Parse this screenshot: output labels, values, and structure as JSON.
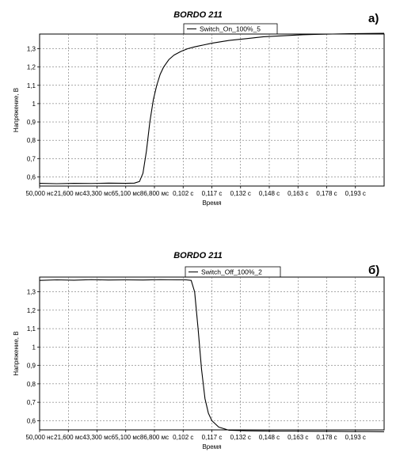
{
  "chart_data": [
    {
      "type": "line",
      "panel_label": "а)",
      "title": "BORDO 211",
      "legend": "Switch_On_100%_5",
      "xlabel": "Время",
      "ylabel": "Напряжение, В",
      "x_tick_labels": [
        "50,000 нс",
        "21,600 мс",
        "43,300 мс",
        "65,100 мс",
        "86,800 мс",
        "0,102 с",
        "0,117 с",
        "0,132 с",
        "0,148 с",
        "0,163 с",
        "0,178 с",
        "0,193 с"
      ],
      "y_tick_labels": [
        "0,6",
        "0,7",
        "0,8",
        "0,9",
        "1",
        "1,1",
        "1,2",
        "1,3"
      ],
      "y_ticks": [
        0.6,
        0.7,
        0.8,
        0.9,
        1.0,
        1.1,
        1.2,
        1.3
      ],
      "xlim": [
        0,
        0.2
      ],
      "ylim": [
        0.55,
        1.38
      ],
      "grid": true,
      "legend_position": "top-center",
      "series": [
        {
          "name": "Switch_On_100%_5",
          "color": "#000000",
          "x": [
            0,
            0.01,
            0.02,
            0.03,
            0.04,
            0.05,
            0.055,
            0.058,
            0.06,
            0.062,
            0.064,
            0.066,
            0.068,
            0.07,
            0.072,
            0.075,
            0.078,
            0.082,
            0.086,
            0.09,
            0.095,
            0.1,
            0.11,
            0.12,
            0.13,
            0.14,
            0.15,
            0.16,
            0.17,
            0.18,
            0.19,
            0.2
          ],
          "y": [
            0.565,
            0.563,
            0.565,
            0.564,
            0.566,
            0.565,
            0.566,
            0.575,
            0.62,
            0.74,
            0.9,
            1.02,
            1.1,
            1.16,
            1.2,
            1.24,
            1.265,
            1.285,
            1.3,
            1.31,
            1.32,
            1.33,
            1.345,
            1.355,
            1.365,
            1.37,
            1.375,
            1.378,
            1.38,
            1.382,
            1.383,
            1.384
          ]
        }
      ]
    },
    {
      "type": "line",
      "panel_label": "б)",
      "title": "BORDO 211",
      "legend": "Switch_Off_100%_2",
      "xlabel": "Время",
      "ylabel": "Напряжение, В",
      "x_tick_labels": [
        "50,000 нс",
        "21,600 мс",
        "43,300 мс",
        "65,100 мс",
        "86,800 мс",
        "0,102 с",
        "0,117 с",
        "0,132 с",
        "0,148 с",
        "0,163 с",
        "0,178 с",
        "0,193 с"
      ],
      "y_tick_labels": [
        "0,6",
        "0,7",
        "0,8",
        "0,9",
        "1",
        "1,1",
        "1,2",
        "1,3"
      ],
      "y_ticks": [
        0.6,
        0.7,
        0.8,
        0.9,
        1.0,
        1.1,
        1.2,
        1.3
      ],
      "xlim": [
        0,
        0.2
      ],
      "ylim": [
        0.55,
        1.38
      ],
      "grid": true,
      "legend_position": "top-center",
      "series": [
        {
          "name": "Switch_Off_100%_2",
          "color": "#000000",
          "x": [
            0,
            0.01,
            0.02,
            0.03,
            0.04,
            0.05,
            0.06,
            0.07,
            0.08,
            0.085,
            0.088,
            0.09,
            0.092,
            0.094,
            0.096,
            0.098,
            0.1,
            0.104,
            0.11,
            0.12,
            0.13,
            0.14,
            0.15,
            0.16,
            0.17,
            0.18,
            0.19,
            0.2
          ],
          "y": [
            1.362,
            1.365,
            1.363,
            1.366,
            1.364,
            1.365,
            1.364,
            1.366,
            1.365,
            1.365,
            1.362,
            1.3,
            1.1,
            0.88,
            0.72,
            0.64,
            0.6,
            0.565,
            0.548,
            0.545,
            0.544,
            0.543,
            0.543,
            0.542,
            0.542,
            0.541,
            0.541,
            0.54
          ]
        }
      ]
    }
  ]
}
